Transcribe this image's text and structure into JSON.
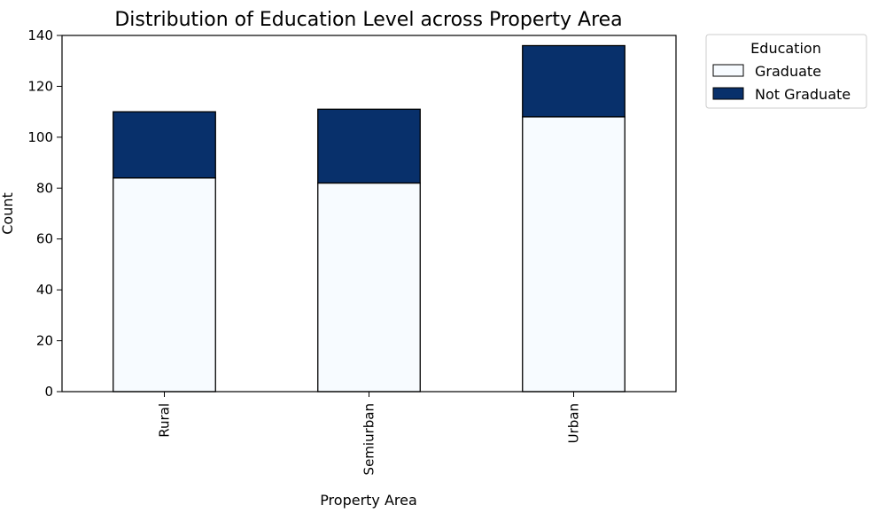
{
  "chart_data": {
    "type": "bar",
    "stacked": true,
    "title": "Distribution of Education Level across Property Area",
    "xlabel": "Property Area",
    "ylabel": "Count",
    "categories": [
      "Rural",
      "Semiurban",
      "Urban"
    ],
    "series": [
      {
        "name": "Graduate",
        "values": [
          84,
          82,
          108
        ],
        "color": "#f7fbff"
      },
      {
        "name": "Not Graduate",
        "values": [
          26,
          29,
          28
        ],
        "color": "#08306b"
      }
    ],
    "ylim": [
      0,
      140
    ],
    "yticks": [
      0,
      20,
      40,
      60,
      80,
      100,
      120,
      140
    ],
    "grid": false,
    "legend": {
      "title": "Education",
      "placement": "outside-top-right"
    }
  }
}
